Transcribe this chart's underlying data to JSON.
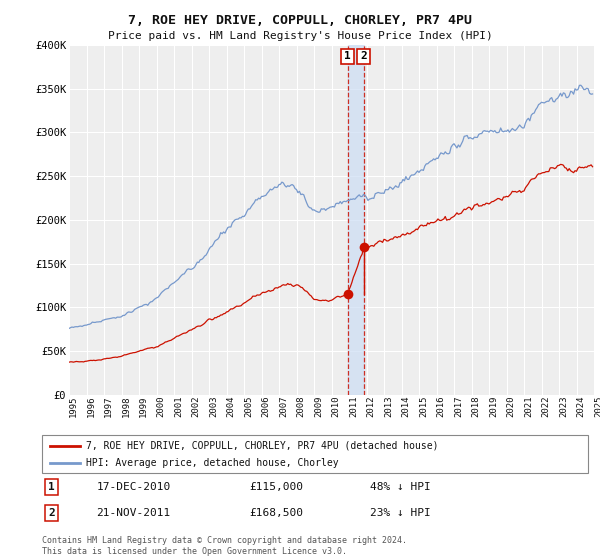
{
  "title": "7, ROE HEY DRIVE, COPPULL, CHORLEY, PR7 4PU",
  "subtitle": "Price paid vs. HM Land Registry's House Price Index (HPI)",
  "red_label": "7, ROE HEY DRIVE, COPPULL, CHORLEY, PR7 4PU (detached house)",
  "blue_label": "HPI: Average price, detached house, Chorley",
  "transaction1": {
    "label": "1",
    "date": "17-DEC-2010",
    "price": 115000,
    "hpi_pct": "48% ↓ HPI"
  },
  "transaction2": {
    "label": "2",
    "date": "21-NOV-2011",
    "price": 168500,
    "hpi_pct": "23% ↓ HPI"
  },
  "copyright": "Contains HM Land Registry data © Crown copyright and database right 2024.\nThis data is licensed under the Open Government Licence v3.0.",
  "ylim": [
    0,
    400000
  ],
  "yticks": [
    0,
    50000,
    100000,
    150000,
    200000,
    250000,
    300000,
    350000,
    400000
  ],
  "background_color": "#ffffff",
  "plot_bg_color": "#eeeeee",
  "grid_color": "#ffffff",
  "blue_color": "#7799cc",
  "red_color": "#cc1100",
  "highlight_color": "#ccddf5",
  "transaction_box_color": "#cc1100",
  "start_year": 1995,
  "end_year": 2025,
  "blue_keypoints": [
    [
      1995.0,
      76000
    ],
    [
      1998.0,
      90000
    ],
    [
      2000.0,
      110000
    ],
    [
      2002.5,
      155000
    ],
    [
      2004.5,
      200000
    ],
    [
      2007.3,
      245000
    ],
    [
      2008.0,
      240000
    ],
    [
      2008.8,
      215000
    ],
    [
      2009.5,
      210000
    ],
    [
      2010.5,
      218000
    ],
    [
      2011.0,
      222000
    ],
    [
      2012.0,
      225000
    ],
    [
      2013.5,
      235000
    ],
    [
      2015.0,
      255000
    ],
    [
      2017.0,
      285000
    ],
    [
      2019.0,
      300000
    ],
    [
      2021.0,
      310000
    ],
    [
      2022.5,
      345000
    ],
    [
      2023.5,
      342000
    ],
    [
      2024.5,
      350000
    ],
    [
      2025.0,
      348000
    ]
  ],
  "red_keypoints": [
    [
      1995.0,
      37000
    ],
    [
      1996.5,
      39000
    ],
    [
      1998.0,
      44000
    ],
    [
      2000.0,
      55000
    ],
    [
      2002.0,
      75000
    ],
    [
      2004.0,
      95000
    ],
    [
      2006.0,
      115000
    ],
    [
      2007.5,
      127000
    ],
    [
      2008.3,
      124000
    ],
    [
      2009.0,
      110000
    ],
    [
      2009.8,
      107000
    ],
    [
      2010.92,
      115000
    ],
    [
      2011.87,
      168500
    ],
    [
      2013.0,
      175000
    ],
    [
      2015.0,
      190000
    ],
    [
      2017.0,
      205000
    ],
    [
      2019.0,
      220000
    ],
    [
      2021.0,
      235000
    ],
    [
      2022.0,
      255000
    ],
    [
      2023.0,
      260000
    ],
    [
      2024.0,
      258000
    ],
    [
      2025.0,
      262000
    ]
  ]
}
